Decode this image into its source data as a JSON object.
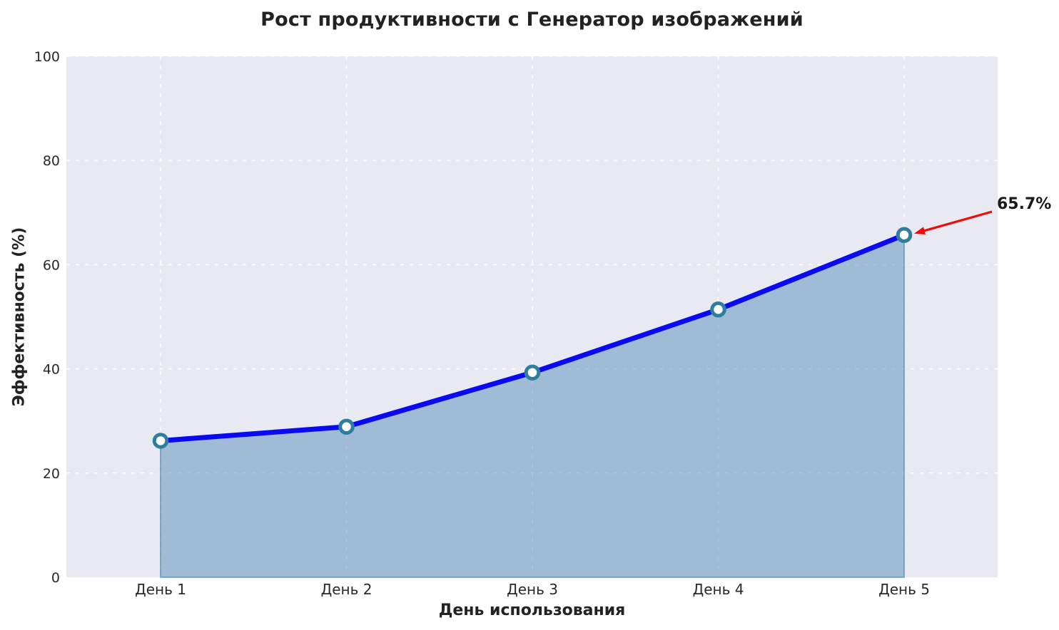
{
  "chart_data": {
    "type": "area",
    "title": "Рост продуктивности с Генератор изображений",
    "xlabel": "День использования",
    "ylabel": "Эффективность (%)",
    "categories": [
      "День 1",
      "День 2",
      "День 3",
      "День 4",
      "День 5"
    ],
    "values": [
      26.2,
      28.9,
      39.3,
      51.4,
      65.7
    ],
    "ylim": [
      0,
      100
    ],
    "yticks": [
      0,
      20,
      40,
      60,
      80,
      100
    ],
    "grid": "dashed-white",
    "legend": "none",
    "annotation": {
      "text": "65.7%",
      "point_index": 4
    },
    "colors": {
      "line": "#0a0af0",
      "marker_fill": "#ffffff",
      "marker_ring": "#2e7f9e",
      "area_fill": "rgba(70,130,180,0.45)",
      "area_edge": "rgba(70,130,180,0.6)",
      "plot_bg": "#e9e9f2",
      "grid_line": "#ffffff",
      "arrow": "#f20a0a",
      "tick_text": "#2a2a2a"
    }
  }
}
